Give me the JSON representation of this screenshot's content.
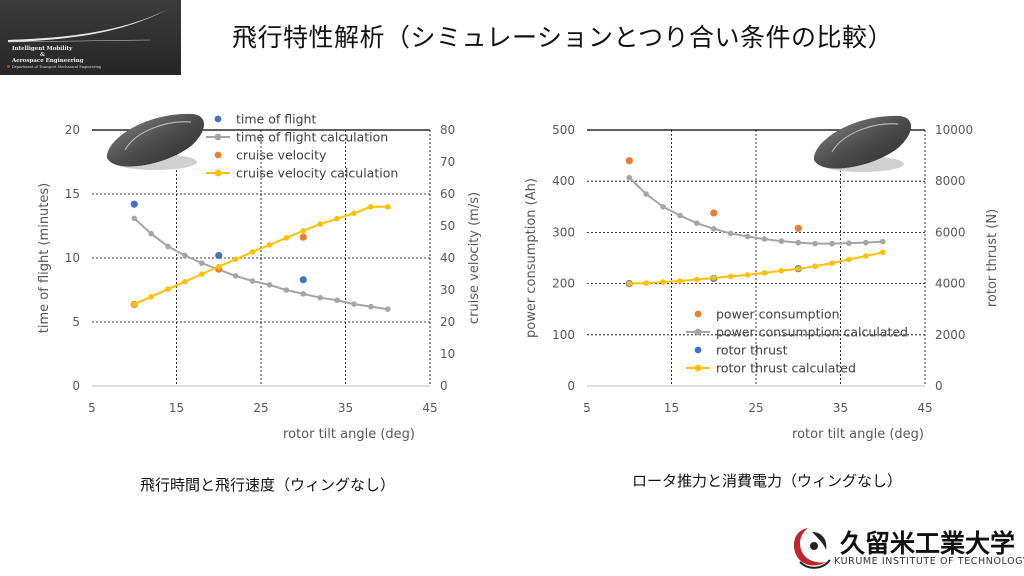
{
  "title": "飛行特性解析（シミュレーションとつり合い条件の比較）",
  "lab_logo": {
    "line1": "Intelligent Mobility",
    "line2": "&",
    "line3": "Aerospace Engineering",
    "line4": "Department of Transport Mechanical Engineering"
  },
  "university_logo": {
    "name_jp": "久留米工業大学",
    "name_en": "KURUME INSTITUTE OF TECHNOLOGY",
    "accent_red": "#c0262d"
  },
  "captions": {
    "left": "飛行時間と飛行速度（ウィングなし）",
    "right": "ロータ推力と消費電力（ウィングなし）"
  },
  "chart_data": [
    {
      "type": "scatter",
      "xlabel": "rotor tilt angle (deg)",
      "ylabel": "time of flight (minutes)",
      "y2label": "cruise velocity (m/s)",
      "xlim": [
        5,
        45
      ],
      "ylim": [
        0,
        20
      ],
      "y2lim": [
        0,
        80
      ],
      "xticks": [
        5,
        15,
        25,
        35,
        45
      ],
      "yticks": [
        0,
        5,
        10,
        15,
        20
      ],
      "y2ticks": [
        0,
        10,
        20,
        30,
        40,
        50,
        60,
        70,
        80
      ],
      "grid": "dotted",
      "legend_position": "top-right",
      "series": [
        {
          "name": "time of flight",
          "style": "points",
          "axis": "left",
          "color": "#4472c4",
          "x": [
            10,
            20,
            30
          ],
          "y": [
            14.2,
            10.2,
            8.3
          ]
        },
        {
          "name": "time of flight calculation",
          "style": "line-markers",
          "axis": "left",
          "color": "#a5a5a5",
          "x": [
            10,
            12,
            14,
            16,
            18,
            20,
            22,
            24,
            26,
            28,
            30,
            32,
            34,
            36,
            38,
            40
          ],
          "y": [
            13.1,
            11.9,
            10.9,
            10.2,
            9.6,
            9.1,
            8.6,
            8.2,
            7.9,
            7.5,
            7.2,
            6.9,
            6.7,
            6.4,
            6.2,
            6.0
          ]
        },
        {
          "name": "cruise velocity",
          "style": "points",
          "axis": "right",
          "color": "#ed7d31",
          "x": [
            10,
            20,
            30
          ],
          "y": [
            25.5,
            36.5,
            46.5
          ]
        },
        {
          "name": "cruise velocity calculation",
          "style": "line-markers",
          "axis": "right",
          "color": "#ffc000",
          "x": [
            10,
            12,
            14,
            16,
            18,
            20,
            22,
            24,
            26,
            28,
            30,
            32,
            34,
            36,
            38,
            40
          ],
          "y": [
            25.5,
            27.9,
            30.3,
            32.6,
            35.0,
            37.3,
            39.6,
            41.9,
            44.1,
            46.3,
            48.5,
            50.6,
            52.3,
            54.0,
            56.0,
            56.0
          ]
        }
      ]
    },
    {
      "type": "scatter",
      "xlabel": "rotor tilt angle (deg)",
      "ylabel": "power consumption (Ah)",
      "y2label": "rotor thrust (N)",
      "xlim": [
        5,
        45
      ],
      "ylim": [
        0,
        500
      ],
      "y2lim": [
        0,
        10000
      ],
      "xticks": [
        5,
        15,
        25,
        35,
        45
      ],
      "yticks": [
        0,
        100,
        200,
        300,
        400,
        500
      ],
      "y2ticks": [
        0,
        2000,
        4000,
        6000,
        8000,
        10000
      ],
      "grid": "dotted",
      "legend_position": "bottom-right",
      "series": [
        {
          "name": "power consumption",
          "style": "points",
          "axis": "left",
          "color": "#ed7d31",
          "x": [
            10,
            20,
            30
          ],
          "y": [
            440,
            338,
            308
          ]
        },
        {
          "name": "power consumption calculated",
          "style": "line-markers",
          "axis": "left",
          "color": "#a5a5a5",
          "x": [
            10,
            12,
            14,
            16,
            18,
            20,
            22,
            24,
            26,
            28,
            30,
            32,
            34,
            36,
            38,
            40
          ],
          "y": [
            407,
            375,
            350,
            333,
            318,
            307,
            298,
            292,
            287,
            283,
            280,
            278,
            278,
            279,
            280,
            282
          ]
        },
        {
          "name": "rotor thrust",
          "style": "points",
          "axis": "right",
          "color": "#4472c4",
          "x": [
            10,
            20,
            30
          ],
          "y": [
            4000,
            4200,
            4580
          ]
        },
        {
          "name": "rotor thrust calculated",
          "style": "line-markers",
          "axis": "right",
          "color": "#ffc000",
          "x": [
            10,
            12,
            14,
            16,
            18,
            20,
            22,
            24,
            26,
            28,
            30,
            32,
            34,
            36,
            38,
            40
          ],
          "y": [
            4000,
            4020,
            4060,
            4100,
            4160,
            4220,
            4280,
            4340,
            4420,
            4500,
            4580,
            4680,
            4800,
            4940,
            5080,
            5220
          ]
        }
      ]
    }
  ]
}
